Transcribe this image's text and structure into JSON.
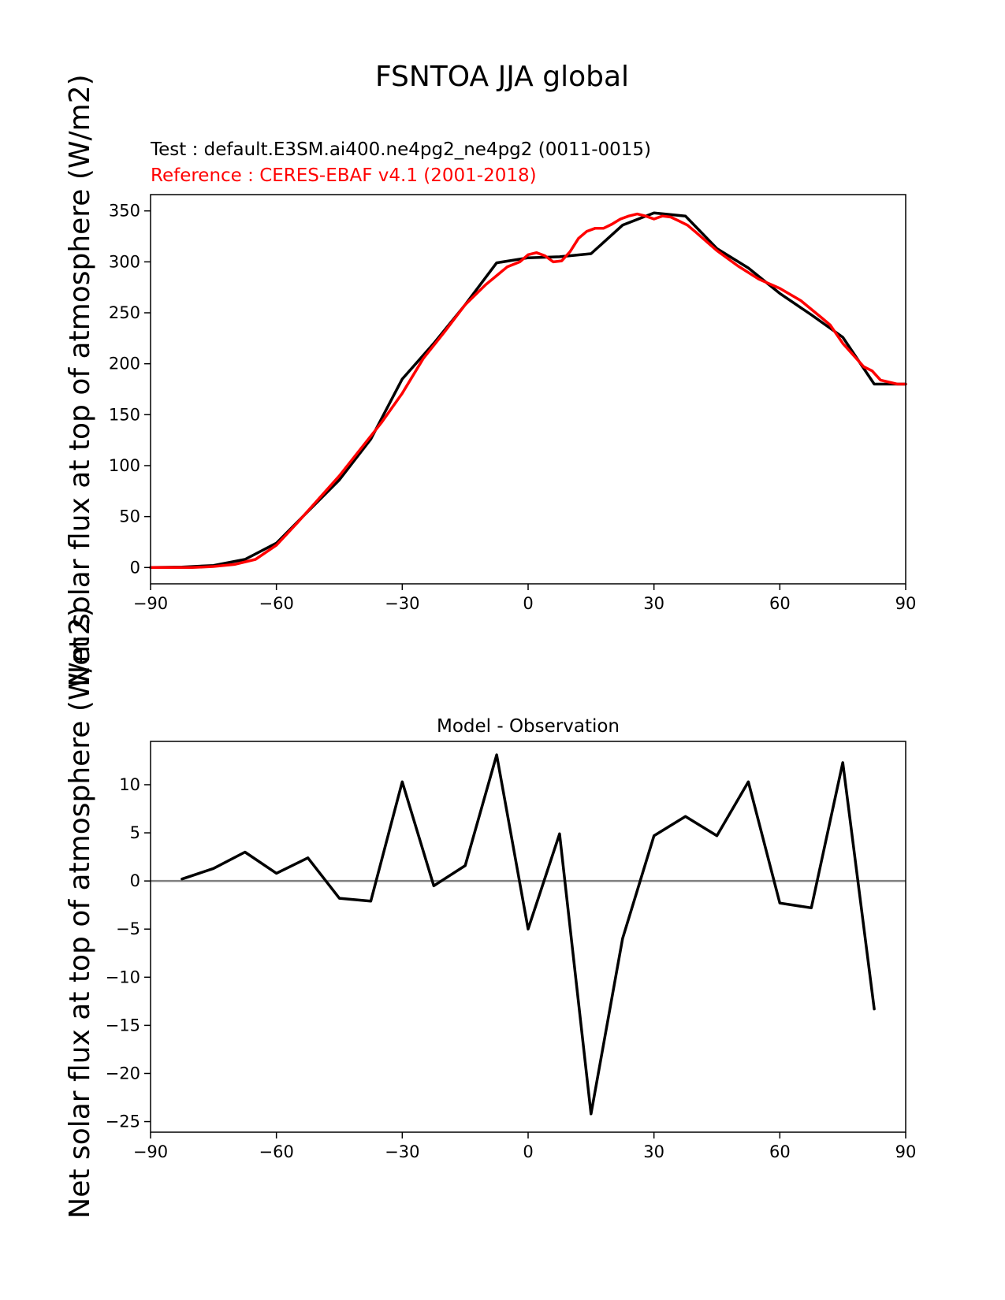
{
  "figure": {
    "title": "FSNTOA JJA global",
    "ylabel": "Net solar flux at top of atmosphere (W/m2)"
  },
  "chart_data": [
    {
      "type": "line",
      "test_label": "Test : default.E3SM.ai400.ne4pg2_ne4pg2 (0011-0015)",
      "reference_label": "Reference : CERES-EBAF v4.1 (2001-2018)",
      "xlim": [
        -90,
        90
      ],
      "ylim": [
        -16,
        366
      ],
      "xticks": [
        -90,
        -60,
        -30,
        0,
        30,
        60,
        90
      ],
      "yticks": [
        0,
        50,
        100,
        150,
        200,
        250,
        300,
        350
      ],
      "grid": false,
      "series": [
        {
          "color": "#000000",
          "x": [
            -90,
            -82.5,
            -75,
            -67.5,
            -60,
            -52.5,
            -45,
            -37.5,
            -30,
            -22.5,
            -15,
            -7.5,
            0,
            7.5,
            15,
            22.5,
            30,
            37.5,
            45,
            52.5,
            60,
            67.5,
            75,
            82.5,
            90
          ],
          "y": [
            0,
            0.5,
            2,
            8,
            24,
            55,
            86,
            126,
            185,
            220,
            258,
            299,
            304,
            305,
            308,
            336,
            348,
            345,
            313,
            294,
            269,
            248,
            226,
            180,
            180
          ]
        },
        {
          "color": "#ff0000",
          "x": [
            -90,
            -85,
            -80,
            -75,
            -70,
            -65,
            -60,
            -55,
            -50,
            -45,
            -40,
            -35,
            -30,
            -25,
            -20,
            -15,
            -10,
            -5,
            -2,
            0,
            2,
            4,
            6,
            8,
            10,
            12,
            14,
            16,
            18,
            20,
            22,
            24,
            26,
            28,
            30,
            32,
            34,
            36,
            38,
            40,
            45,
            50,
            55,
            60,
            65,
            70,
            72,
            75,
            80,
            82,
            84,
            86,
            88,
            90
          ],
          "y": [
            0,
            0,
            0,
            1,
            3,
            8,
            22,
            44,
            67,
            90,
            116,
            142,
            171,
            205,
            231,
            258,
            278,
            295,
            300,
            307,
            309,
            306,
            300,
            301,
            310,
            323,
            330,
            333,
            333,
            337,
            342,
            345,
            347,
            345,
            342,
            345,
            344,
            340,
            336,
            329,
            311,
            296,
            283,
            274,
            262,
            245,
            238,
            220,
            197,
            193,
            184,
            182,
            180,
            180
          ]
        }
      ]
    },
    {
      "type": "line",
      "title": "Model - Observation",
      "xlim": [
        -90,
        90
      ],
      "ylim": [
        -26.1,
        14.5
      ],
      "xticks": [
        -90,
        -60,
        -30,
        0,
        30,
        60,
        90
      ],
      "yticks": [
        -25,
        -20,
        -15,
        -10,
        -5,
        0,
        5,
        10
      ],
      "zero_line_color": "#808080",
      "grid": false,
      "series": [
        {
          "color": "#000000",
          "x": [
            -82.5,
            -75,
            -67.5,
            -60,
            -52.5,
            -45,
            -37.5,
            -30,
            -22.5,
            -15,
            -7.5,
            0,
            7.5,
            15,
            22.5,
            30,
            37.5,
            45,
            52.5,
            60,
            67.5,
            75,
            82.5
          ],
          "y": [
            0.2,
            1.3,
            3.0,
            0.8,
            2.4,
            -1.8,
            -2.1,
            10.3,
            -0.5,
            1.6,
            13.1,
            -5.0,
            4.9,
            -24.2,
            -6.0,
            4.7,
            6.7,
            4.7,
            10.3,
            -2.3,
            -2.8,
            12.3,
            -13.3
          ]
        }
      ]
    }
  ]
}
